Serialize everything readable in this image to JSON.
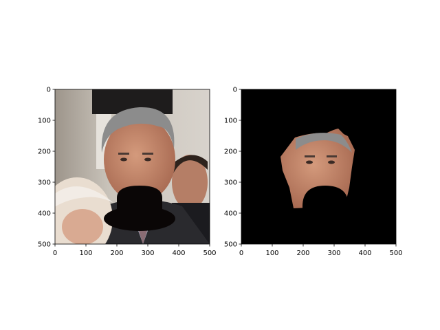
{
  "panels": [
    {
      "id": "original",
      "xticks": [
        "0",
        "100",
        "200",
        "300",
        "400",
        "500"
      ],
      "yticks": [
        "0",
        "100",
        "200",
        "300",
        "400",
        "500"
      ],
      "image_description": "photo of a grey-haired man in a suit with a black bowler-hat shape pasted over his mouth/chin; an elderly white-haired person in the lower-left and another man in the right background"
    },
    {
      "id": "masked",
      "xticks": [
        "0",
        "100",
        "200",
        "300",
        "400",
        "500"
      ],
      "yticks": [
        "0",
        "100",
        "200",
        "300",
        "400",
        "500"
      ],
      "image_description": "black background with only the segmented face region of the man visible; lower portion covered by the black hat shape"
    }
  ],
  "axis_range": {
    "x": [
      0,
      500
    ],
    "y": [
      0,
      500
    ],
    "y_inverted": true
  },
  "colors": {
    "background_photo": "#b7aea2",
    "hat": "#0a0606",
    "hair": "#8a8a8a",
    "skin": "#c0876c",
    "suit": "#2a2a2e",
    "mask_bg": "#000000"
  }
}
